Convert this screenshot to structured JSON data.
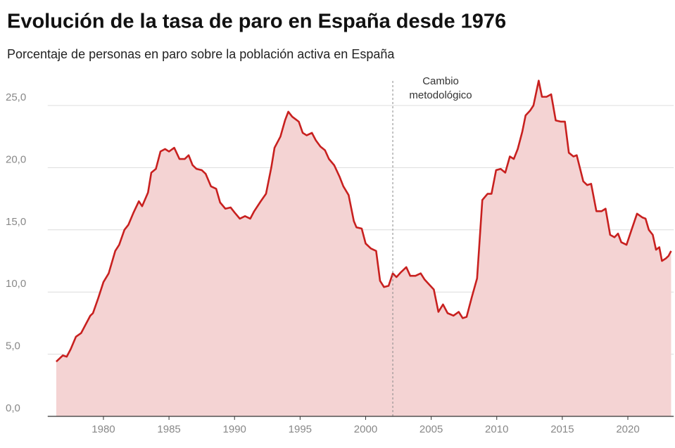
{
  "chart_data": {
    "type": "area",
    "title": "Evolución de la tasa de paro en España desde 1976",
    "subtitle": "Porcentaje de personas en paro sobre la población activa en España",
    "annotation": {
      "x": 2002.07,
      "lines": [
        "Cambio",
        "metodológico"
      ]
    },
    "color": "#c8201f",
    "fill_color": "#f4d3d3",
    "grid": true,
    "xlim": [
      1975.75,
      2023.5
    ],
    "xticks": [
      1980,
      1985,
      1990,
      1995,
      2000,
      2005,
      2010,
      2015,
      2020
    ],
    "ylim": [
      0,
      27.5
    ],
    "yticks": [
      {
        "value": 0,
        "label": "0,0"
      },
      {
        "value": 5,
        "label": "5,0"
      },
      {
        "value": 10,
        "label": "10,0"
      },
      {
        "value": 15,
        "label": "15,0"
      },
      {
        "value": 20,
        "label": "20,0"
      },
      {
        "value": 25,
        "label": "25,0"
      }
    ],
    "x": [
      1976.4,
      1976.9,
      1977.2,
      1977.5,
      1977.9,
      1978.3,
      1978.7,
      1979.0,
      1979.2,
      1979.6,
      1980.0,
      1980.4,
      1980.9,
      1981.2,
      1981.6,
      1981.9,
      1982.3,
      1982.7,
      1982.95,
      1983.4,
      1983.65,
      1984.0,
      1984.35,
      1984.7,
      1985.0,
      1985.4,
      1985.8,
      1986.2,
      1986.5,
      1986.8,
      1987.1,
      1987.5,
      1987.8,
      1988.2,
      1988.6,
      1988.9,
      1989.3,
      1989.7,
      1990.0,
      1990.4,
      1990.8,
      1991.2,
      1991.5,
      1992.0,
      1992.4,
      1992.8,
      1993.05,
      1993.5,
      1993.85,
      1994.1,
      1994.4,
      1994.65,
      1994.9,
      1995.2,
      1995.5,
      1995.9,
      1996.2,
      1996.55,
      1996.9,
      1997.2,
      1997.6,
      1998.0,
      1998.3,
      1998.7,
      1999.1,
      1999.3,
      1999.7,
      2000.0,
      2000.4,
      2000.8,
      2001.1,
      2001.4,
      2001.75,
      2002.07,
      2002.35,
      2002.7,
      2003.1,
      2003.4,
      2003.8,
      2004.2,
      2004.5,
      2004.85,
      2005.2,
      2005.55,
      2005.9,
      2006.25,
      2006.7,
      2007.1,
      2007.4,
      2007.7,
      2008.1,
      2008.5,
      2008.9,
      2009.3,
      2009.6,
      2009.95,
      2010.3,
      2010.65,
      2011.0,
      2011.3,
      2011.6,
      2011.95,
      2012.2,
      2012.55,
      2012.8,
      2013.2,
      2013.45,
      2013.8,
      2014.15,
      2014.5,
      2014.9,
      2015.2,
      2015.5,
      2015.85,
      2016.1,
      2016.6,
      2016.9,
      2017.2,
      2017.6,
      2018.0,
      2018.3,
      2018.65,
      2018.98,
      2019.25,
      2019.5,
      2019.9,
      2020.25,
      2020.7,
      2021.1,
      2021.35,
      2021.6,
      2021.9,
      2022.15,
      2022.4,
      2022.6,
      2022.9,
      2023.1,
      2023.3
    ],
    "values": [
      4.4,
      4.9,
      4.8,
      5.4,
      6.4,
      6.7,
      7.5,
      8.1,
      8.3,
      9.5,
      10.8,
      11.5,
      13.3,
      13.8,
      15.0,
      15.4,
      16.4,
      17.3,
      16.9,
      18.0,
      19.6,
      19.9,
      21.3,
      21.5,
      21.3,
      21.6,
      20.7,
      20.7,
      21.0,
      20.2,
      19.9,
      19.8,
      19.5,
      18.5,
      18.3,
      17.2,
      16.7,
      16.8,
      16.4,
      15.9,
      16.1,
      15.9,
      16.5,
      17.3,
      17.9,
      20.0,
      21.6,
      22.5,
      23.8,
      24.5,
      24.1,
      23.9,
      23.7,
      22.8,
      22.6,
      22.8,
      22.2,
      21.7,
      21.4,
      20.7,
      20.2,
      19.3,
      18.5,
      17.8,
      15.7,
      15.2,
      15.1,
      13.9,
      13.5,
      13.3,
      10.9,
      10.4,
      10.5,
      11.5,
      11.2,
      11.6,
      12.0,
      11.3,
      11.3,
      11.5,
      11.0,
      10.6,
      10.2,
      8.4,
      9.0,
      8.3,
      8.1,
      8.4,
      7.9,
      8.0,
      9.6,
      11.1,
      17.4,
      17.9,
      17.9,
      19.8,
      19.9,
      19.6,
      20.9,
      20.7,
      21.5,
      22.9,
      24.2,
      24.6,
      25.0,
      27.0,
      25.7,
      25.7,
      25.9,
      23.8,
      23.7,
      23.7,
      21.2,
      20.9,
      21.0,
      18.9,
      18.6,
      18.7,
      16.5,
      16.5,
      16.7,
      14.6,
      14.4,
      14.7,
      14.0,
      13.8,
      14.9,
      16.3,
      16.0,
      15.9,
      15.0,
      14.6,
      13.4,
      13.6,
      12.5,
      12.7,
      12.9,
      13.3
    ]
  }
}
